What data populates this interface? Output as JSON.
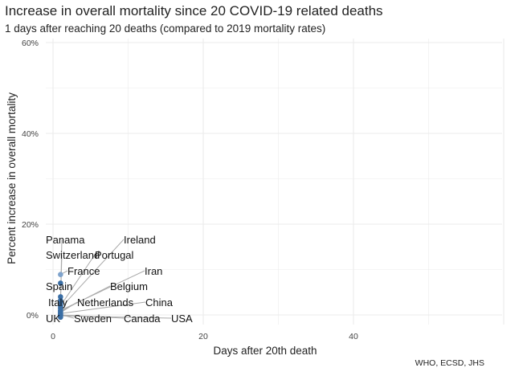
{
  "chart_data": {
    "type": "scatter",
    "title": "Increase in overall mortality since 20 COVID-19 related deaths",
    "subtitle": "1 days after reaching 20 deaths (compared to 2019 mortality rates)",
    "xlabel": "Days after 20th death",
    "ylabel": "Percent increase in overall mortality",
    "caption": "WHO, ECSD, JHS",
    "xlim": [
      -1,
      60
    ],
    "ylim": [
      -1,
      60
    ],
    "x_ticks": [
      {
        "value": 0,
        "label": "0"
      },
      {
        "value": 20,
        "label": "20"
      },
      {
        "value": 40,
        "label": "40"
      }
    ],
    "y_ticks": [
      {
        "value": 0,
        "label": "0%"
      },
      {
        "value": 20,
        "label": "20%"
      },
      {
        "value": 40,
        "label": "40%"
      },
      {
        "value": 60,
        "label": "60%"
      }
    ],
    "grid": true,
    "point_color": "#3a6ea5",
    "points": [
      {
        "country": "France",
        "x": 1,
        "y": 8.9,
        "color": "#7fa3cc"
      },
      {
        "country": "Spain",
        "x": 1,
        "y": 7.0,
        "color": "#3a6ea5"
      },
      {
        "country": "Italy",
        "x": 1,
        "y": 4.0,
        "color": "#3a6ea5"
      },
      {
        "country": "Switzerland",
        "x": 1,
        "y": 3.2,
        "color": "#3a6ea5"
      },
      {
        "country": "Panama",
        "x": 1,
        "y": 2.6,
        "color": "#3a6ea5"
      },
      {
        "country": "Portugal",
        "x": 1,
        "y": 2.0,
        "color": "#3a6ea5"
      },
      {
        "country": "Ireland",
        "x": 1,
        "y": 1.5,
        "color": "#3a6ea5"
      },
      {
        "country": "Iran",
        "x": 1,
        "y": 1.0,
        "color": "#3a6ea5"
      },
      {
        "country": "Belgium",
        "x": 1,
        "y": 0.8,
        "color": "#3a6ea5"
      },
      {
        "country": "Netherlands",
        "x": 1,
        "y": 0.5,
        "color": "#3a6ea5"
      },
      {
        "country": "China",
        "x": 1,
        "y": 0.3,
        "color": "#3a6ea5"
      },
      {
        "country": "Sweden",
        "x": 1,
        "y": 0.1,
        "color": "#3a6ea5"
      },
      {
        "country": "Canada",
        "x": 1,
        "y": 0.0,
        "color": "#3a6ea5"
      },
      {
        "country": "USA",
        "x": 1,
        "y": -0.2,
        "color": "#3a6ea5"
      },
      {
        "country": "UK",
        "x": 1,
        "y": -0.5,
        "color": "#3a6ea5"
      }
    ]
  }
}
